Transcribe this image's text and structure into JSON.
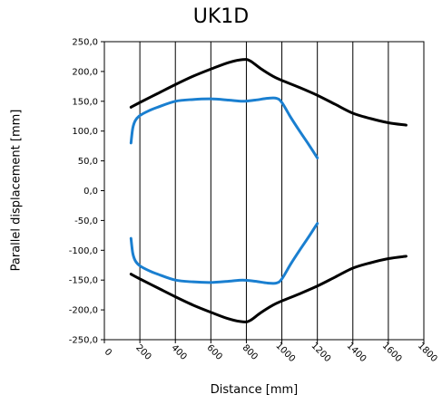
{
  "chart_data": {
    "type": "line",
    "title": "UK1D",
    "xlabel": "Distance  [mm]",
    "ylabel": "Parallel displacement [mm]",
    "xlim": [
      0,
      1800
    ],
    "ylim": [
      -250,
      250
    ],
    "x_ticks": [
      "0",
      "200",
      "400",
      "600",
      "800",
      "1000",
      "1200",
      "1400",
      "1600",
      "1800"
    ],
    "y_ticks": [
      "250,0",
      "200,0",
      "150,0",
      "100,0",
      "50,0",
      "0,0",
      "-50,0",
      "-100,0",
      "-150,0",
      "-200,0",
      "-250,0"
    ],
    "grid": "vertical",
    "colors": {
      "black": "#000000",
      "blue": "#1a7fd0"
    },
    "series": [
      {
        "color": "#000000",
        "x": [
          150,
          200,
          300,
          400,
          500,
          600,
          700,
          780,
          820,
          880,
          950,
          1000,
          1100,
          1200,
          1300,
          1400,
          1500,
          1600,
          1700
        ],
        "y": [
          140,
          148,
          163,
          178,
          192,
          204,
          215,
          220,
          218,
          205,
          192,
          185,
          173,
          160,
          145,
          130,
          121,
          114,
          110
        ]
      },
      {
        "color": "#1a7fd0",
        "x": [
          150,
          160,
          175,
          200,
          250,
          300,
          400,
          500,
          600,
          700,
          780,
          850,
          920,
          970,
          1000,
          1050,
          1100,
          1150,
          1200
        ],
        "y": [
          80,
          105,
          118,
          126,
          134,
          140,
          150,
          153,
          154,
          152,
          150,
          152,
          155,
          155,
          148,
          123,
          100,
          78,
          55
        ]
      },
      {
        "color": "#1a7fd0",
        "x": [
          150,
          160,
          175,
          200,
          250,
          300,
          400,
          500,
          600,
          700,
          780,
          850,
          920,
          970,
          1000,
          1050,
          1100,
          1150,
          1200
        ],
        "y": [
          -80,
          -105,
          -118,
          -126,
          -134,
          -140,
          -150,
          -153,
          -154,
          -152,
          -150,
          -152,
          -155,
          -155,
          -148,
          -123,
          -100,
          -78,
          -55
        ]
      },
      {
        "color": "#000000",
        "x": [
          150,
          200,
          300,
          400,
          500,
          600,
          700,
          780,
          820,
          880,
          950,
          1000,
          1100,
          1200,
          1300,
          1400,
          1500,
          1600,
          1700
        ],
        "y": [
          -140,
          -148,
          -163,
          -178,
          -192,
          -204,
          -215,
          -220,
          -218,
          -205,
          -192,
          -185,
          -173,
          -160,
          -145,
          -130,
          -121,
          -114,
          -110
        ]
      }
    ]
  }
}
